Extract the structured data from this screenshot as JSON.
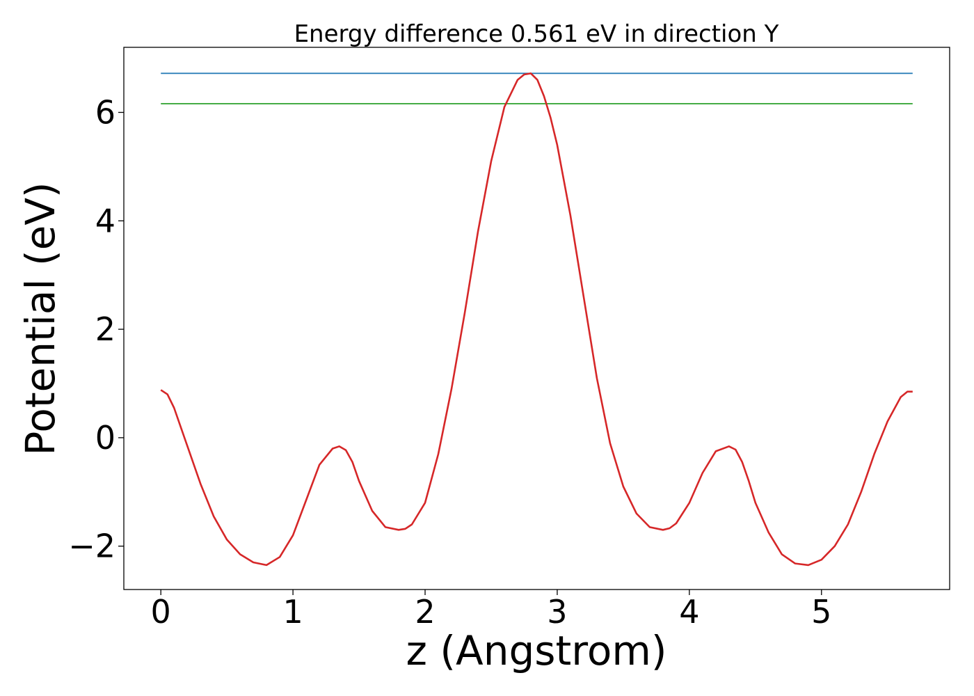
{
  "chart_data": {
    "type": "line",
    "title": "Energy difference 0.561 eV in direction Y",
    "xlabel": "z (Angstrom)",
    "ylabel": "Potential (eV)",
    "xlim": [
      -0.28,
      5.97
    ],
    "ylim": [
      -2.8,
      7.2
    ],
    "xticks": [
      0,
      1,
      2,
      3,
      4,
      5
    ],
    "xtick_labels": [
      "0",
      "1",
      "2",
      "3",
      "4",
      "5"
    ],
    "yticks": [
      -2,
      0,
      2,
      4,
      6
    ],
    "ytick_labels": [
      "−2",
      "0",
      "2",
      "4",
      "6"
    ],
    "grid": false,
    "legend": "none",
    "series": [
      {
        "color": "#1f77b4",
        "x": [
          0,
          5.69
        ],
        "y": [
          6.72,
          6.72
        ]
      },
      {
        "color": "#2ca02c",
        "x": [
          0,
          5.69
        ],
        "y": [
          6.16,
          6.16
        ]
      },
      {
        "color": "#d62728",
        "x": [
          0,
          0.05,
          0.1,
          0.15,
          0.2,
          0.3,
          0.4,
          0.5,
          0.6,
          0.7,
          0.8,
          0.9,
          1.0,
          1.1,
          1.2,
          1.3,
          1.35,
          1.4,
          1.45,
          1.5,
          1.6,
          1.7,
          1.8,
          1.85,
          1.9,
          2.0,
          2.1,
          2.2,
          2.3,
          2.4,
          2.5,
          2.6,
          2.7,
          2.75,
          2.8,
          2.85,
          2.9,
          2.95,
          3.0,
          3.1,
          3.2,
          3.3,
          3.4,
          3.5,
          3.6,
          3.7,
          3.8,
          3.85,
          3.9,
          4.0,
          4.1,
          4.2,
          4.3,
          4.35,
          4.4,
          4.45,
          4.5,
          4.6,
          4.7,
          4.8,
          4.9,
          5.0,
          5.1,
          5.2,
          5.3,
          5.4,
          5.5,
          5.6,
          5.65,
          5.69
        ],
        "y": [
          0.88,
          0.8,
          0.55,
          0.2,
          -0.15,
          -0.85,
          -1.45,
          -1.88,
          -2.15,
          -2.3,
          -2.35,
          -2.2,
          -1.8,
          -1.15,
          -0.5,
          -0.2,
          -0.16,
          -0.23,
          -0.45,
          -0.8,
          -1.35,
          -1.65,
          -1.7,
          -1.68,
          -1.6,
          -1.2,
          -0.3,
          0.9,
          2.3,
          3.8,
          5.1,
          6.1,
          6.6,
          6.7,
          6.72,
          6.6,
          6.3,
          5.9,
          5.4,
          4.1,
          2.6,
          1.1,
          -0.1,
          -0.9,
          -1.4,
          -1.65,
          -1.7,
          -1.67,
          -1.58,
          -1.2,
          -0.65,
          -0.25,
          -0.16,
          -0.22,
          -0.45,
          -0.8,
          -1.2,
          -1.75,
          -2.15,
          -2.32,
          -2.35,
          -2.25,
          -2.0,
          -1.6,
          -1.0,
          -0.3,
          0.3,
          0.75,
          0.85,
          0.85
        ]
      }
    ]
  }
}
